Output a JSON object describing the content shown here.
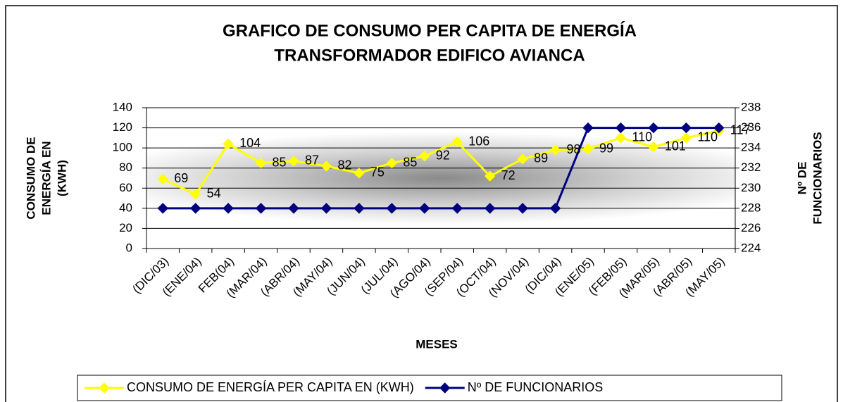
{
  "chart_data": {
    "type": "line",
    "title": [
      "GRAFICO DE CONSUMO PER CAPITA DE ENERGÍA",
      "TRANSFORMADOR EDIFICO AVIANCA"
    ],
    "ylabel": [
      "CONSUMO DE",
      "ENERGÍA EN",
      "(KWH)"
    ],
    "y2label": [
      "Nº DE",
      "FUNCIONARIOS"
    ],
    "xlabel": "MESES",
    "categories": [
      "(DIC/03)",
      "(ENE/04)",
      "FEB(04)",
      "(MAR/04)",
      "(ABR/04)",
      "(MAY/04)",
      "(JUN/04)",
      "(JUL/04)",
      "(AGO/04)",
      "(SEP/04)",
      "(OCT/04)",
      "(NOV/04)",
      "(DIC/04)",
      "(ENE/05)",
      "(FEB/05)",
      "(MAR/05)",
      "(ABR/05)",
      "(MAY/05)"
    ],
    "series": [
      {
        "name": "CONSUMO DE ENERGÍA PER CAPITA EN (KWH)",
        "color": "#ffff00",
        "axis": "y",
        "data_labels": true,
        "values": [
          69,
          54,
          104,
          85,
          87,
          82,
          75,
          85,
          92,
          106,
          72,
          89,
          98,
          99,
          110,
          101,
          110,
          117
        ]
      },
      {
        "name": "Nº DE FUNCIONARIOS",
        "color": "#000080",
        "axis": "y2",
        "data_labels": false,
        "values": [
          228,
          228,
          228,
          228,
          228,
          228,
          228,
          228,
          228,
          228,
          228,
          228,
          228,
          236,
          236,
          236,
          236,
          236
        ]
      }
    ],
    "ylim": [
      0,
      140
    ],
    "yticks": [
      0,
      20,
      40,
      60,
      80,
      100,
      120,
      140
    ],
    "y2lim": [
      224,
      238
    ],
    "y2ticks": [
      224,
      226,
      228,
      230,
      232,
      234,
      236,
      238
    ],
    "grid": true,
    "legend": "bottom"
  }
}
